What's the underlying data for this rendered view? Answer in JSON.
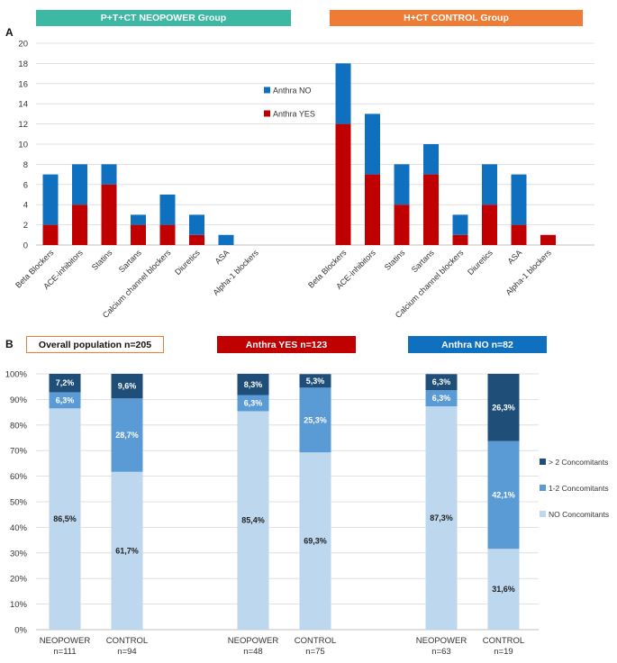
{
  "panelA": {
    "letter": "A",
    "banners": [
      "P+T+CT NEOPOWER Group",
      "H+CT CONTROL Group"
    ],
    "chart_data": {
      "type": "bar",
      "stacked": true,
      "ylim": [
        0,
        20
      ],
      "yticks": [
        "0",
        "2",
        "4",
        "6",
        "8",
        "10",
        "12",
        "14",
        "16",
        "18",
        "20"
      ],
      "groups": [
        {
          "name": "P+T+CT NEOPOWER Group",
          "categories": [
            "Beta Blockers",
            "ACE-inhibitors",
            "Statins",
            "Sartans",
            "Calcium channel blockers",
            "Diuretics",
            "ASA",
            "Alpha-1 blockers"
          ],
          "series": [
            {
              "name": "Anthra YES",
              "values": [
                2,
                4,
                6,
                2,
                2,
                1,
                0,
                0
              ]
            },
            {
              "name": "Anthra NO",
              "values": [
                5,
                4,
                2,
                1,
                3,
                2,
                1,
                0
              ]
            }
          ]
        },
        {
          "name": "H+CT CONTROL Group",
          "categories": [
            "Beta Blockers",
            "ACE-inhibitors",
            "Statins",
            "Sartans",
            "Calcium channel blockers",
            "Diuretics",
            "ASA",
            "Alpha-1 blockers"
          ],
          "series": [
            {
              "name": "Anthra YES",
              "values": [
                12,
                7,
                4,
                7,
                1,
                4,
                2,
                1
              ]
            },
            {
              "name": "Anthra NO",
              "values": [
                6,
                6,
                4,
                3,
                2,
                4,
                5,
                0
              ]
            }
          ]
        }
      ],
      "legend": [
        {
          "label": "Anthra NO",
          "color": "#1070c0"
        },
        {
          "label": "Anthra YES",
          "color": "#c00000"
        }
      ],
      "colors": {
        "Anthra YES": "#c00000",
        "Anthra NO": "#1070c0"
      },
      "legend_position": "top-center"
    }
  },
  "panelB": {
    "letter": "B",
    "chart_data": {
      "type": "bar",
      "stacked": true,
      "percent": true,
      "ylim": [
        0,
        100
      ],
      "yticks": [
        "0%",
        "10%",
        "20%",
        "30%",
        "40%",
        "50%",
        "60%",
        "70%",
        "80%",
        "90%",
        "100%"
      ],
      "groups": [
        {
          "title": "Overall population n=205",
          "bars": [
            {
              "label": [
                "NEOPOWER",
                "n=111"
              ],
              "values": [
                86.5,
                6.3,
                7.2
              ],
              "labels": [
                "86,5%",
                "6,3%",
                "7,2%"
              ]
            },
            {
              "label": [
                "CONTROL",
                "n=94"
              ],
              "values": [
                61.7,
                28.7,
                9.6
              ],
              "labels": [
                "61,7%",
                "28,7%",
                "9,6%"
              ]
            }
          ]
        },
        {
          "title": "Anthra YES n=123",
          "bars": [
            {
              "label": [
                "NEOPOWER",
                "n=48"
              ],
              "values": [
                85.4,
                6.3,
                8.3
              ],
              "labels": [
                "85,4%",
                "6,3%",
                "8,3%"
              ]
            },
            {
              "label": [
                "CONTROL",
                "n=75"
              ],
              "values": [
                69.3,
                25.3,
                5.3
              ],
              "labels": [
                "69,3%",
                "25,3%",
                "5,3%"
              ]
            }
          ]
        },
        {
          "title": "Anthra NO n=82",
          "bars": [
            {
              "label": [
                "NEOPOWER",
                "n=63"
              ],
              "values": [
                87.3,
                6.3,
                6.3
              ],
              "labels": [
                "87,3%",
                "6,3%",
                "6,3%"
              ]
            },
            {
              "label": [
                "CONTROL",
                "n=19"
              ],
              "values": [
                31.6,
                42.1,
                26.3
              ],
              "labels": [
                "31,6%",
                "42,1%",
                "26,3%"
              ]
            }
          ]
        }
      ],
      "series_names": [
        "NO Concomitants",
        "1-2 Concomitants",
        "> 2 Concomitants"
      ],
      "series_colors": [
        "#bdd7ee",
        "#5b9bd5",
        "#1f4e79"
      ],
      "legend": [
        {
          "label": "> 2 Concomitants",
          "color": "#1f4e79"
        },
        {
          "label": "1-2 Concomitants",
          "color": "#5b9bd5"
        },
        {
          "label": "NO Concomitants",
          "color": "#bdd7ee"
        }
      ],
      "legend_position": "right"
    }
  }
}
